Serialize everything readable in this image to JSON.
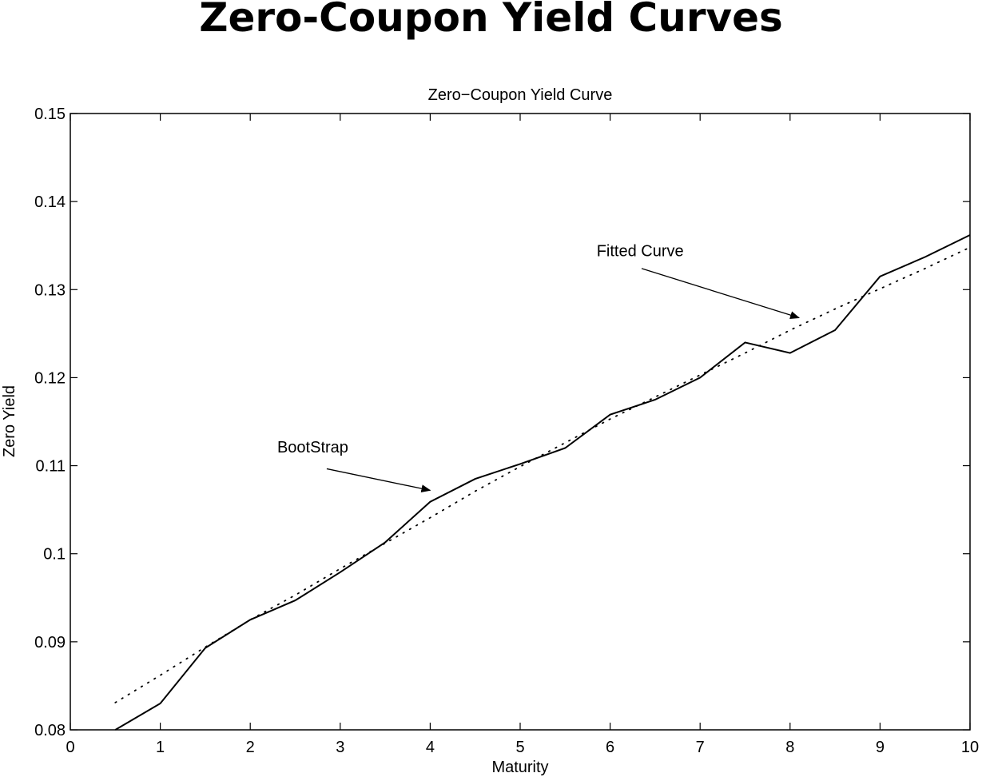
{
  "page": {
    "title": "Zero-Coupon Yield Curves"
  },
  "chart_data": {
    "type": "line",
    "title": "Zero−Coupon Yield Curve",
    "xlabel": "Maturity",
    "ylabel": "Zero Yield",
    "xlim": [
      0,
      10
    ],
    "ylim": [
      0.08,
      0.15
    ],
    "xticks": [
      0,
      1,
      2,
      3,
      4,
      5,
      6,
      7,
      8,
      9,
      10
    ],
    "xtick_labels": [
      "0",
      "1",
      "2",
      "3",
      "4",
      "5",
      "6",
      "7",
      "8",
      "9",
      "10"
    ],
    "yticks": [
      0.08,
      0.09,
      0.1,
      0.11,
      0.12,
      0.13,
      0.14,
      0.15
    ],
    "ytick_labels": [
      "0.08",
      "0.09",
      "0.1",
      "0.11",
      "0.12",
      "0.13",
      "0.14",
      "0.15"
    ],
    "grid": false,
    "series": [
      {
        "name": "BootStrap",
        "style": "solid",
        "x": [
          0.5,
          1,
          1.5,
          2,
          2.5,
          3,
          3.5,
          4,
          4.5,
          5,
          5.5,
          6,
          6.5,
          7,
          7.5,
          8,
          8.5,
          9,
          9.5,
          10
        ],
        "y": [
          0.08,
          0.083,
          0.0893,
          0.0925,
          0.0947,
          0.0979,
          0.1013,
          0.1059,
          0.1085,
          0.1102,
          0.112,
          0.1158,
          0.1175,
          0.12,
          0.124,
          0.1228,
          0.1254,
          0.1315,
          0.1337,
          0.1362
        ]
      },
      {
        "name": "Fitted Curve",
        "style": "dotted",
        "x": [
          0.5,
          1,
          1.5,
          2,
          2.5,
          3,
          3.5,
          4,
          4.5,
          5,
          5.5,
          6,
          6.5,
          7,
          7.5,
          8,
          8.5,
          9,
          9.5,
          10
        ],
        "y": [
          0.0831,
          0.0862,
          0.0894,
          0.0925,
          0.0953,
          0.0983,
          0.1012,
          0.1041,
          0.1071,
          0.1099,
          0.1126,
          0.1153,
          0.1178,
          0.1203,
          0.1228,
          0.1254,
          0.1278,
          0.1301,
          0.1324,
          0.1348
        ]
      }
    ],
    "annotations": [
      {
        "text": "BootStrap",
        "text_at": [
          2.3,
          0.1115
        ],
        "arrow_from": [
          2.85,
          0.10965
        ],
        "arrow_to": [
          4.0,
          0.1072
        ]
      },
      {
        "text": "Fitted Curve",
        "text_at": [
          5.85,
          0.1338
        ],
        "arrow_from": [
          6.35,
          0.1324
        ],
        "arrow_to": [
          8.1,
          0.1268
        ]
      }
    ]
  }
}
